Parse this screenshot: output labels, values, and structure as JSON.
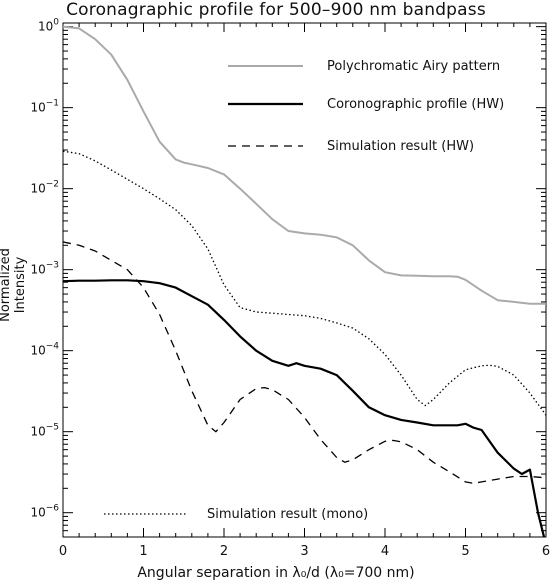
{
  "title": "Coronagraphic profile for 500–900 nm bandpass",
  "xlabel": "Angular separation in λ₀/d (λ₀=700 nm)",
  "ylabel": "Normalized Intensity",
  "chart_data": {
    "type": "line",
    "title": "Coronagraphic profile for 500–900 nm bandpass",
    "xlabel": "Angular separation in λ₀/d (λ₀=700 nm)",
    "ylabel": "Normalized Intensity",
    "xlim": [
      0,
      6
    ],
    "ylim": [
      5e-07,
      1
    ],
    "yscale": "log",
    "x_ticks": [
      0,
      1,
      2,
      3,
      4,
      5,
      6
    ],
    "y_ticks": [
      {
        "value": 1e-06,
        "base": "10",
        "exp": "−6"
      },
      {
        "value": 1e-05,
        "base": "10",
        "exp": "−5"
      },
      {
        "value": 0.0001,
        "base": "10",
        "exp": "−4"
      },
      {
        "value": 0.001,
        "base": "10",
        "exp": "−3"
      },
      {
        "value": 0.01,
        "base": "10",
        "exp": "−2"
      },
      {
        "value": 0.1,
        "base": "10",
        "exp": "−1"
      },
      {
        "value": 1,
        "base": "10",
        "exp": "0"
      }
    ],
    "grid": false,
    "legend_position": "top-right",
    "series": [
      {
        "name": "Polychromatic Airy pattern",
        "color": "#aaaaaa",
        "dash": "solid",
        "x": [
          0,
          0.2,
          0.4,
          0.6,
          0.8,
          1.0,
          1.2,
          1.4,
          1.5,
          1.6,
          1.8,
          2.0,
          2.2,
          2.4,
          2.6,
          2.8,
          3.0,
          3.2,
          3.4,
          3.6,
          3.8,
          4.0,
          4.2,
          4.4,
          4.6,
          4.8,
          4.9,
          5.0,
          5.2,
          5.4,
          5.6,
          5.8,
          6.0
        ],
        "y": [
          1.0,
          0.95,
          0.7,
          0.45,
          0.22,
          0.09,
          0.038,
          0.023,
          0.021,
          0.02,
          0.018,
          0.015,
          0.01,
          0.0065,
          0.0042,
          0.003,
          0.0028,
          0.0027,
          0.0025,
          0.002,
          0.0013,
          0.00093,
          0.00085,
          0.00084,
          0.00083,
          0.00083,
          0.00082,
          0.00075,
          0.00055,
          0.00042,
          0.0004,
          0.00038,
          0.00038
        ]
      },
      {
        "name": "Coronographic profile (HW)",
        "color": "#000000",
        "dash": "solid",
        "x": [
          0,
          0.2,
          0.4,
          0.6,
          0.8,
          1.0,
          1.2,
          1.4,
          1.6,
          1.8,
          2.0,
          2.2,
          2.4,
          2.6,
          2.8,
          2.9,
          3.0,
          3.2,
          3.4,
          3.6,
          3.8,
          4.0,
          4.2,
          4.4,
          4.6,
          4.8,
          4.9,
          5.0,
          5.1,
          5.2,
          5.4,
          5.6,
          5.7,
          5.8,
          5.9,
          6.0
        ],
        "y": [
          0.00072,
          0.00073,
          0.00073,
          0.00074,
          0.00074,
          0.00072,
          0.00068,
          0.0006,
          0.00047,
          0.00037,
          0.00024,
          0.00015,
          0.0001,
          7.5e-05,
          6.5e-05,
          7e-05,
          6.5e-05,
          6e-05,
          5e-05,
          3.2e-05,
          2e-05,
          1.6e-05,
          1.4e-05,
          1.3e-05,
          1.2e-05,
          1.2e-05,
          1.2e-05,
          1.25e-05,
          1.12e-05,
          1.05e-05,
          5.5e-06,
          3.5e-06,
          3e-06,
          3.4e-06,
          1e-06,
          4e-07
        ]
      },
      {
        "name": "Simulation result (HW)",
        "color": "#000000",
        "dash": "dashed",
        "x": [
          0,
          0.2,
          0.4,
          0.6,
          0.8,
          1.0,
          1.2,
          1.4,
          1.6,
          1.8,
          1.9,
          2.0,
          2.2,
          2.4,
          2.5,
          2.6,
          2.8,
          3.0,
          3.2,
          3.4,
          3.5,
          3.6,
          3.8,
          4.0,
          4.1,
          4.2,
          4.4,
          4.6,
          4.8,
          5.0,
          5.1,
          5.2,
          5.4,
          5.6,
          5.8,
          6.0
        ],
        "y": [
          0.0022,
          0.002,
          0.0017,
          0.0013,
          0.001,
          0.0006,
          0.00028,
          0.0001,
          3.2e-05,
          1.2e-05,
          1e-05,
          1.3e-05,
          2.5e-05,
          3.4e-05,
          3.5e-05,
          3.3e-05,
          2.5e-05,
          1.5e-05,
          8e-06,
          4.8e-06,
          4.2e-06,
          4.5e-06,
          6e-06,
          7.6e-06,
          7.8e-06,
          7.5e-06,
          6e-06,
          4.2e-06,
          3.2e-06,
          2.4e-06,
          2.3e-06,
          2.4e-06,
          2.6e-06,
          2.8e-06,
          2.8e-06,
          2.7e-06
        ]
      },
      {
        "name": "Simulation result (mono)",
        "color": "#000000",
        "dash": "dotted",
        "x": [
          0,
          0.2,
          0.4,
          0.6,
          0.8,
          1.0,
          1.2,
          1.4,
          1.6,
          1.8,
          2.0,
          2.2,
          2.4,
          2.6,
          2.8,
          3.0,
          3.2,
          3.4,
          3.6,
          3.8,
          4.0,
          4.2,
          4.4,
          4.5,
          4.6,
          4.8,
          5.0,
          5.2,
          5.3,
          5.4,
          5.6,
          5.8,
          6.0
        ],
        "y": [
          0.029,
          0.027,
          0.022,
          0.017,
          0.013,
          0.01,
          0.0075,
          0.0055,
          0.0035,
          0.0018,
          0.00065,
          0.00034,
          0.0003,
          0.00029,
          0.00028,
          0.00027,
          0.00025,
          0.00022,
          0.00019,
          0.00014,
          9e-05,
          5e-05,
          2.5e-05,
          2.1e-05,
          2.5e-05,
          4e-05,
          5.8e-05,
          6.5e-05,
          6.6e-05,
          6.4e-05,
          5e-05,
          3e-05,
          1.6e-05
        ]
      }
    ],
    "legend": [
      {
        "series": 0,
        "label": "Polychromatic Airy pattern"
      },
      {
        "series": 1,
        "label": "Coronographic profile (HW)"
      },
      {
        "series": 2,
        "label": "Simulation result (HW)"
      },
      {
        "series": 3,
        "label": "Simulation result (mono)"
      }
    ]
  }
}
